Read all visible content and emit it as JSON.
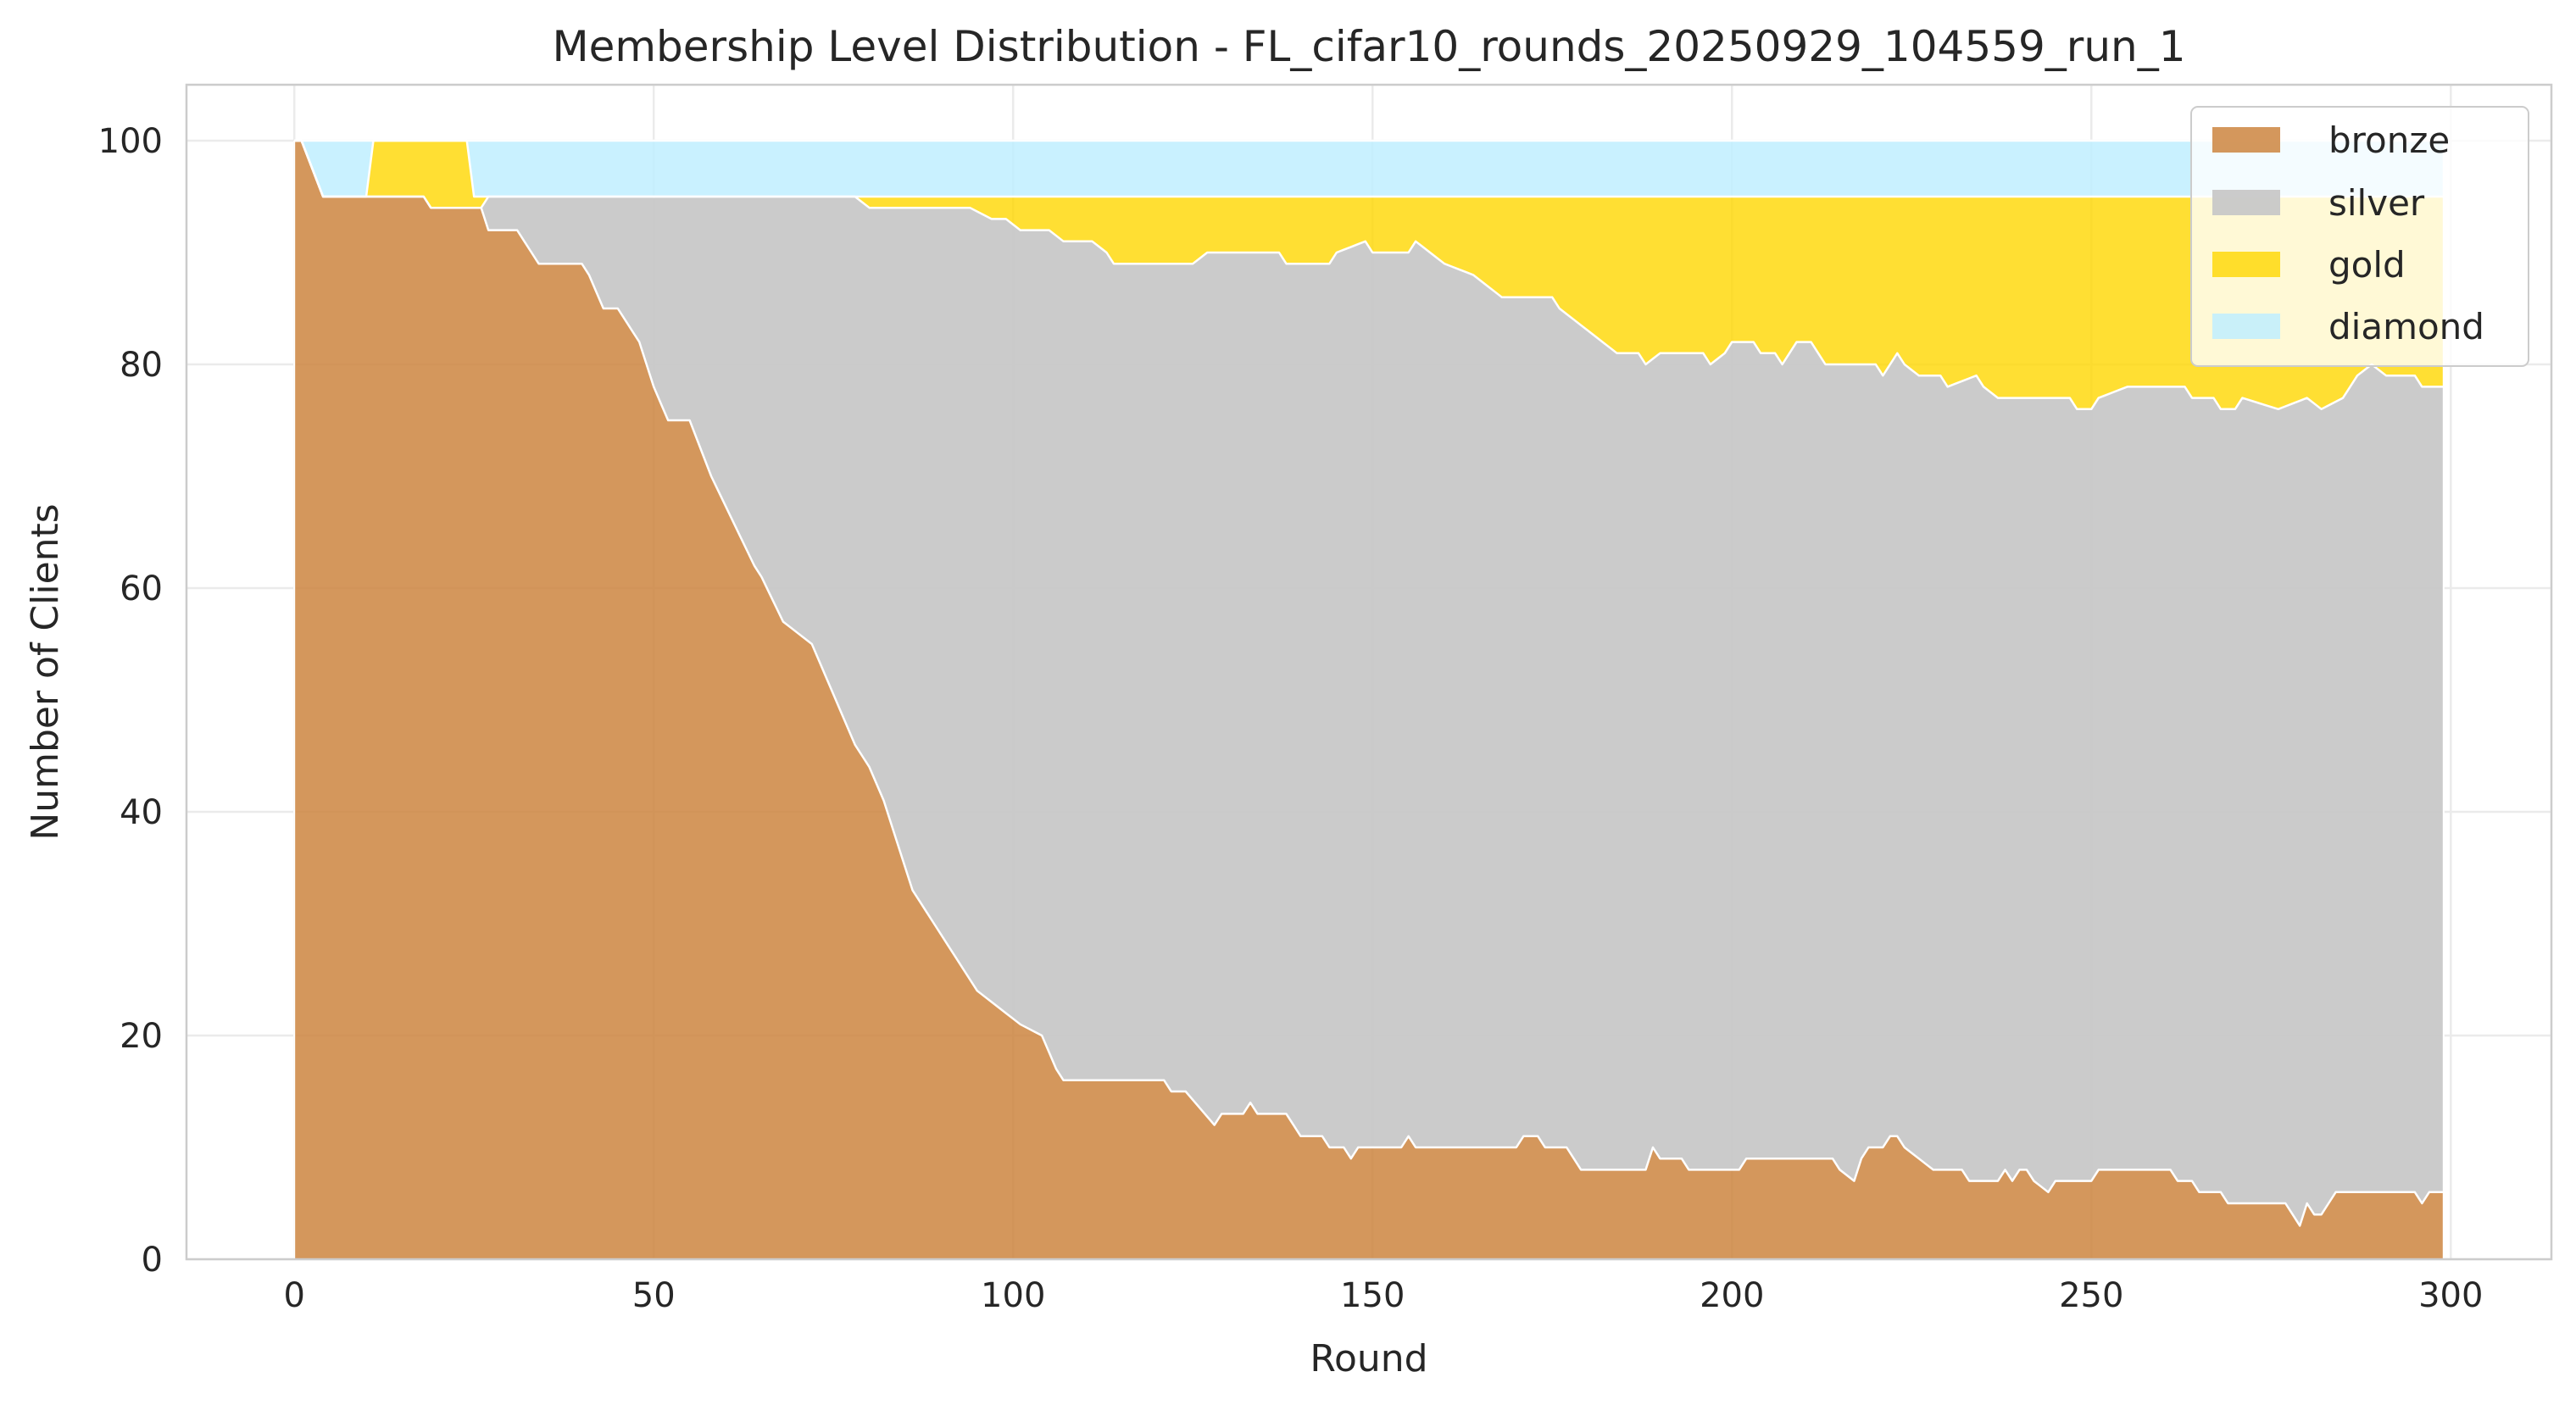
{
  "chart_data": {
    "type": "area",
    "stacked": true,
    "title": "Membership Level Distribution - FL_cifar10_rounds_20250929_104559_run_1",
    "xlabel": "Round",
    "ylabel": "Number of Clients",
    "xlim": [
      -15,
      314
    ],
    "ylim": [
      0,
      105
    ],
    "xticks": [
      0,
      50,
      100,
      150,
      200,
      250,
      300
    ],
    "yticks": [
      0,
      20,
      40,
      60,
      80,
      100
    ],
    "grid": true,
    "legend_position": "top-right",
    "x_range": [
      0,
      299
    ],
    "series": [
      {
        "name": "bronze",
        "color": "#CD853F",
        "keypoints": [
          [
            0,
            100
          ],
          [
            1,
            100
          ],
          [
            4,
            95
          ],
          [
            10,
            95
          ],
          [
            18,
            95
          ],
          [
            19,
            94
          ],
          [
            26,
            94
          ],
          [
            27,
            92
          ],
          [
            31,
            92
          ],
          [
            34,
            89
          ],
          [
            40,
            89
          ],
          [
            41,
            88
          ],
          [
            43,
            85
          ],
          [
            45,
            85
          ],
          [
            47,
            83
          ],
          [
            48,
            82
          ],
          [
            50,
            78
          ],
          [
            52,
            75
          ],
          [
            55,
            75
          ],
          [
            58,
            70
          ],
          [
            61,
            66
          ],
          [
            64,
            62
          ],
          [
            65,
            61
          ],
          [
            68,
            57
          ],
          [
            70,
            56
          ],
          [
            72,
            55
          ],
          [
            74,
            52
          ],
          [
            76,
            49
          ],
          [
            78,
            46
          ],
          [
            80,
            44
          ],
          [
            82,
            41
          ],
          [
            84,
            37
          ],
          [
            86,
            33
          ],
          [
            88,
            31
          ],
          [
            90,
            29
          ],
          [
            92,
            27
          ],
          [
            95,
            24
          ],
          [
            97,
            23
          ],
          [
            101,
            21
          ],
          [
            104,
            20
          ],
          [
            106,
            17
          ],
          [
            107,
            16
          ],
          [
            121,
            16
          ],
          [
            122,
            15
          ],
          [
            124,
            15
          ],
          [
            128,
            12
          ],
          [
            129,
            13
          ],
          [
            132,
            13
          ],
          [
            133,
            14
          ],
          [
            134,
            13
          ],
          [
            138,
            13
          ],
          [
            140,
            11
          ],
          [
            143,
            11
          ],
          [
            144,
            10
          ],
          [
            146,
            10
          ],
          [
            147,
            9
          ],
          [
            148,
            10
          ],
          [
            154,
            10
          ],
          [
            155,
            11
          ],
          [
            156,
            10
          ],
          [
            170,
            10
          ],
          [
            171,
            11
          ],
          [
            173,
            11
          ],
          [
            174,
            10
          ],
          [
            177,
            10
          ],
          [
            179,
            8
          ],
          [
            188,
            8
          ],
          [
            189,
            10
          ],
          [
            190,
            9
          ],
          [
            193,
            9
          ],
          [
            194,
            8
          ],
          [
            201,
            8
          ],
          [
            202,
            9
          ],
          [
            214,
            9
          ],
          [
            215,
            8
          ],
          [
            217,
            7
          ],
          [
            218,
            9
          ],
          [
            219,
            10
          ],
          [
            221,
            10
          ],
          [
            222,
            11
          ],
          [
            223,
            11
          ],
          [
            224,
            10
          ],
          [
            226,
            9
          ],
          [
            228,
            8
          ],
          [
            232,
            8
          ],
          [
            233,
            7
          ],
          [
            237,
            7
          ],
          [
            238,
            8
          ],
          [
            239,
            7
          ],
          [
            240,
            8
          ],
          [
            241,
            8
          ],
          [
            242,
            7
          ],
          [
            244,
            6
          ],
          [
            245,
            7
          ],
          [
            250,
            7
          ],
          [
            251,
            8
          ],
          [
            261,
            8
          ],
          [
            262,
            7
          ],
          [
            264,
            7
          ],
          [
            265,
            6
          ],
          [
            268,
            6
          ],
          [
            269,
            5
          ],
          [
            277,
            5
          ],
          [
            279,
            3
          ],
          [
            280,
            5
          ],
          [
            281,
            4
          ],
          [
            282,
            4
          ],
          [
            283,
            5
          ],
          [
            284,
            6
          ],
          [
            295,
            6
          ],
          [
            296,
            5
          ],
          [
            297,
            6
          ],
          [
            299,
            6
          ]
        ]
      },
      {
        "name": "silver",
        "color": "#C8C8C8",
        "cumulative_top": [
          [
            0,
            100
          ],
          [
            1,
            100
          ],
          [
            4,
            95
          ],
          [
            18,
            95
          ],
          [
            19,
            94
          ],
          [
            26,
            94
          ],
          [
            27,
            95
          ],
          [
            78,
            95
          ],
          [
            80,
            94
          ],
          [
            94,
            94
          ],
          [
            97,
            93
          ],
          [
            99,
            93
          ],
          [
            101,
            92
          ],
          [
            105,
            92
          ],
          [
            107,
            91
          ],
          [
            111,
            91
          ],
          [
            113,
            90
          ],
          [
            114,
            89
          ],
          [
            125,
            89
          ],
          [
            127,
            90
          ],
          [
            137,
            90
          ],
          [
            138,
            89
          ],
          [
            144,
            89
          ],
          [
            145,
            90
          ],
          [
            149,
            91
          ],
          [
            150,
            90
          ],
          [
            155,
            90
          ],
          [
            156,
            91
          ],
          [
            158,
            90
          ],
          [
            160,
            89
          ],
          [
            164,
            88
          ],
          [
            166,
            87
          ],
          [
            168,
            86
          ],
          [
            175,
            86
          ],
          [
            176,
            85
          ],
          [
            180,
            83
          ],
          [
            182,
            82
          ],
          [
            184,
            81
          ],
          [
            187,
            81
          ],
          [
            188,
            80
          ],
          [
            190,
            81
          ],
          [
            196,
            81
          ],
          [
            197,
            80
          ],
          [
            199,
            81
          ],
          [
            200,
            82
          ],
          [
            203,
            82
          ],
          [
            204,
            81
          ],
          [
            206,
            81
          ],
          [
            207,
            80
          ],
          [
            209,
            82
          ],
          [
            211,
            82
          ],
          [
            213,
            80
          ],
          [
            220,
            80
          ],
          [
            221,
            79
          ],
          [
            222,
            80
          ],
          [
            223,
            81
          ],
          [
            224,
            80
          ],
          [
            226,
            79
          ],
          [
            229,
            79
          ],
          [
            230,
            78
          ],
          [
            234,
            79
          ],
          [
            235,
            78
          ],
          [
            237,
            77
          ],
          [
            247,
            77
          ],
          [
            248,
            76
          ],
          [
            250,
            76
          ],
          [
            251,
            77
          ],
          [
            255,
            78
          ],
          [
            263,
            78
          ],
          [
            264,
            77
          ],
          [
            267,
            77
          ],
          [
            268,
            76
          ],
          [
            270,
            76
          ],
          [
            271,
            77
          ],
          [
            276,
            76
          ],
          [
            280,
            77
          ],
          [
            282,
            76
          ],
          [
            285,
            77
          ],
          [
            286,
            78
          ],
          [
            287,
            79
          ],
          [
            289,
            80
          ],
          [
            291,
            79
          ],
          [
            295,
            79
          ],
          [
            296,
            78
          ],
          [
            299,
            78
          ]
        ]
      },
      {
        "name": "gold",
        "color": "#FFD700",
        "cumulative_top": [
          [
            0,
            100
          ],
          [
            1,
            100
          ],
          [
            4,
            95
          ],
          [
            10,
            95
          ],
          [
            11,
            100
          ],
          [
            24,
            100
          ],
          [
            25,
            95
          ],
          [
            299,
            95
          ]
        ]
      },
      {
        "name": "diamond",
        "color": "#BFEFFF",
        "cumulative_top": [
          [
            0,
            100
          ],
          [
            299,
            100
          ]
        ]
      }
    ]
  }
}
